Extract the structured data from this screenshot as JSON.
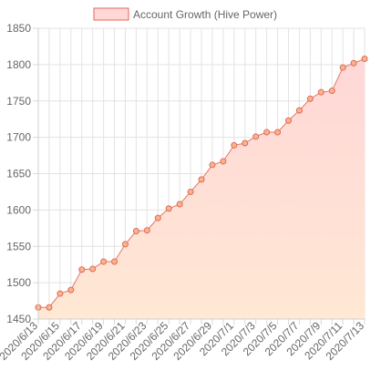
{
  "chart_data": {
    "type": "area",
    "title": "",
    "xlabel": "",
    "ylabel": "",
    "ylim": [
      1450,
      1850
    ],
    "y_ticks": [
      1450,
      1500,
      1550,
      1600,
      1650,
      1700,
      1750,
      1800,
      1850
    ],
    "grid": true,
    "legend_position": "top",
    "categories": [
      "2020/6/13",
      "2020/6/14",
      "2020/6/15",
      "2020/6/16",
      "2020/6/17",
      "2020/6/18",
      "2020/6/19",
      "2020/6/20",
      "2020/6/21",
      "2020/6/22",
      "2020/6/23",
      "2020/6/24",
      "2020/6/25",
      "2020/6/26",
      "2020/6/27",
      "2020/6/28",
      "2020/6/29",
      "2020/6/30",
      "2020/7/1",
      "2020/7/2",
      "2020/7/3",
      "2020/7/4",
      "2020/7/5",
      "2020/7/6",
      "2020/7/7",
      "2020/7/8",
      "2020/7/9",
      "2020/7/10",
      "2020/7/11",
      "2020/7/12",
      "2020/7/13"
    ],
    "visible_tick_labels": [
      "2020/6/13",
      "2020/6/15",
      "2020/6/17",
      "2020/6/19",
      "2020/6/21",
      "2020/6/23",
      "2020/6/25",
      "2020/6/27",
      "2020/6/29",
      "2020/7/1",
      "2020/7/3",
      "2020/7/5",
      "2020/7/7",
      "2020/7/9",
      "2020/7/11",
      "2020/7/13"
    ],
    "series": [
      {
        "name": "Account Growth (Hive Power)",
        "values": [
          1466,
          1466,
          1485,
          1490,
          1518,
          1519,
          1529,
          1529,
          1553,
          1571,
          1572,
          1589,
          1602,
          1608,
          1625,
          1642,
          1662,
          1667,
          1689,
          1692,
          1701,
          1707,
          1707,
          1723,
          1737,
          1753,
          1762,
          1764,
          1796,
          1802,
          1808
        ],
        "line_color": "#e07a63",
        "marker_fill": "#f9b38f",
        "marker_stroke": "#e06a58",
        "fill_top_color": "#ffd7d7",
        "fill_bottom_color": "#ffe8d4"
      }
    ]
  }
}
